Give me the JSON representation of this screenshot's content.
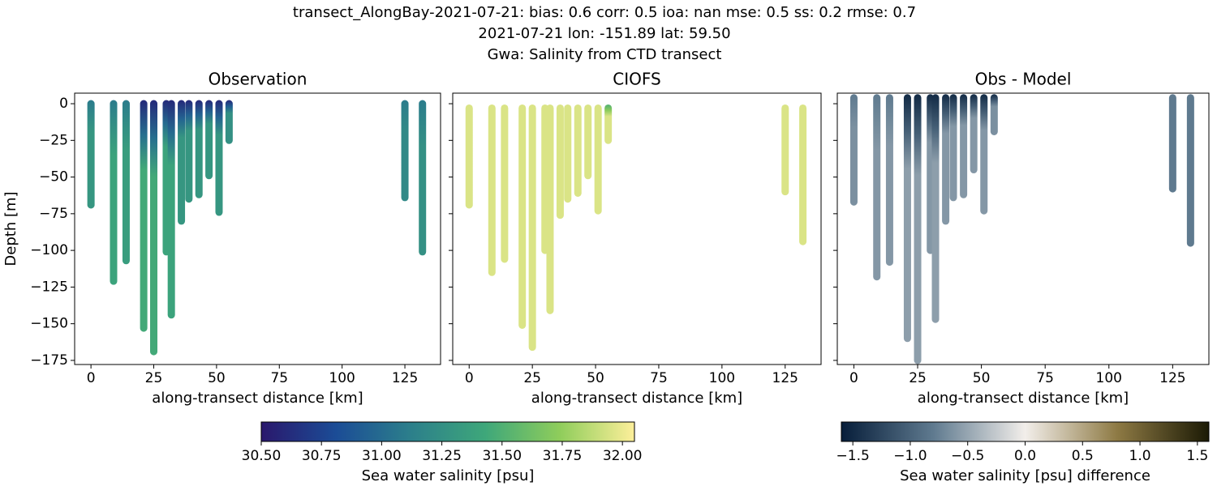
{
  "title": [
    "transect_AlongBay-2021-07-21: bias: 0.6  corr: 0.5  ioa: nan  mse: 0.5  ss: 0.2  rmse: 0.7",
    "2021-07-21 lon: -151.89 lat: 59.50",
    "Gwa: Salinity from CTD transect"
  ],
  "chart_data": [
    {
      "type": "profile",
      "title": "Observation",
      "xlabel": "along-transect distance [km]",
      "ylabel": "Depth [m]",
      "colorbar": 0,
      "xlim": [
        -6.5,
        139.2
      ],
      "ylim": [
        -177.8,
        7.2
      ],
      "xticks": [
        0,
        25,
        50,
        75,
        100,
        125
      ],
      "yticks": [
        {
          "value": 0,
          "label": "0"
        },
        {
          "value": -25,
          "label": "−25"
        },
        {
          "value": -50,
          "label": "−50"
        },
        {
          "value": -75,
          "label": "−75"
        },
        {
          "value": -100,
          "label": "−100"
        },
        {
          "value": -125,
          "label": "−125"
        },
        {
          "value": -150,
          "label": "−150"
        },
        {
          "value": -175,
          "label": "−175"
        }
      ],
      "x": [
        0,
        9,
        14,
        21,
        25,
        30,
        32,
        36,
        39,
        43,
        47,
        51,
        55,
        125,
        132
      ],
      "depth_top": [
        0,
        0,
        0,
        0,
        0,
        0,
        0,
        0,
        0,
        0,
        0,
        0,
        0,
        0,
        0
      ],
      "depth_bottom": [
        -69,
        -121,
        -107,
        -153,
        -169,
        -101,
        -144,
        -80,
        -65,
        -62,
        -49,
        -74,
        -25,
        -64,
        -101
      ],
      "surface_values": [
        31.1,
        31.1,
        31.1,
        30.6,
        30.6,
        30.6,
        30.6,
        30.6,
        30.6,
        30.6,
        30.6,
        30.6,
        30.6,
        31.1,
        31.1
      ],
      "deep_values": [
        31.3,
        31.4,
        31.35,
        31.45,
        31.45,
        31.4,
        31.4,
        31.3,
        31.3,
        31.3,
        31.3,
        31.3,
        31.25,
        31.2,
        31.25
      ]
    },
    {
      "type": "profile",
      "title": "CIOFS",
      "xlabel": "along-transect distance [km]",
      "colorbar": 0,
      "xlim": [
        -6.5,
        139.2
      ],
      "ylim": [
        -177.8,
        7.2
      ],
      "xticks": [
        0,
        25,
        50,
        75,
        100,
        125
      ],
      "x": [
        0,
        9,
        14,
        21,
        25,
        30,
        32,
        36,
        39,
        43,
        47,
        51,
        55,
        125,
        132
      ],
      "depth_top": [
        -3,
        -3,
        -3,
        -3,
        -3,
        -3,
        -3,
        -3,
        -3,
        -3,
        -3,
        -3,
        -3,
        -3,
        -3
      ],
      "depth_bottom": [
        -69,
        -115,
        -106,
        -151,
        -166,
        -100,
        -141,
        -76,
        -65,
        -61,
        -49,
        -73,
        -25,
        -60,
        -94
      ],
      "surface_values": [
        31.95,
        31.95,
        31.95,
        31.95,
        31.95,
        31.95,
        31.95,
        31.95,
        31.95,
        31.95,
        31.95,
        31.95,
        31.5,
        31.95,
        31.95
      ],
      "deep_values": [
        31.95,
        31.95,
        31.95,
        31.95,
        31.95,
        31.95,
        31.95,
        31.95,
        31.95,
        31.95,
        31.95,
        31.95,
        31.95,
        31.95,
        31.95
      ]
    },
    {
      "type": "profile",
      "title": "Obs - Model",
      "xlabel": "along-transect distance [km]",
      "colorbar": 1,
      "xlim": [
        -6.5,
        139.2
      ],
      "ylim": [
        -177.8,
        7.2
      ],
      "xticks": [
        0,
        25,
        50,
        75,
        100,
        125
      ],
      "x": [
        0,
        9,
        14,
        21,
        25,
        30,
        32,
        36,
        39,
        43,
        47,
        51,
        55,
        125,
        132
      ],
      "depth_top": [
        4,
        4,
        4,
        4,
        4,
        4,
        4,
        4,
        4,
        4,
        4,
        4,
        4,
        4,
        4
      ],
      "depth_bottom": [
        -67,
        -118,
        -108,
        -160,
        -175,
        -100,
        -147,
        -80,
        -64,
        -62,
        -45,
        -73,
        -19,
        -58,
        -95
      ],
      "surface_values": [
        -0.8,
        -0.8,
        -0.8,
        -1.5,
        -1.5,
        -1.5,
        -1.5,
        -1.5,
        -1.5,
        -1.5,
        -1.5,
        -1.5,
        -1.5,
        -0.8,
        -0.8
      ],
      "deep_values": [
        -0.65,
        -0.6,
        -0.6,
        -0.55,
        -0.55,
        -0.6,
        -0.55,
        -0.6,
        -0.6,
        -0.6,
        -0.6,
        -0.6,
        -0.65,
        -0.8,
        -0.8
      ]
    }
  ],
  "colorbars": [
    {
      "label": "Sea water salinity [psu]",
      "lim": [
        30.5,
        32.05
      ],
      "colormap": [
        "#2a186c",
        "#1b4c96",
        "#2c7f8b",
        "#3ea77a",
        "#8fcd5b",
        "#fdef9a"
      ],
      "ticks": [
        {
          "value": 30.5,
          "label": "30.50"
        },
        {
          "value": 30.75,
          "label": "30.75"
        },
        {
          "value": 31.0,
          "label": "31.00"
        },
        {
          "value": 31.25,
          "label": "31.25"
        },
        {
          "value": 31.5,
          "label": "31.50"
        },
        {
          "value": 31.75,
          "label": "31.75"
        },
        {
          "value": 32.0,
          "label": "32.00"
        }
      ]
    },
    {
      "label": "Sea water salinity [psu] difference",
      "lim": [
        -1.6,
        1.6
      ],
      "colormap": [
        "#071e3a",
        "#5f7a8f",
        "#f2eeea",
        "#8e7a44",
        "#1b1a05"
      ],
      "ticks": [
        {
          "value": -1.5,
          "label": "−1.5"
        },
        {
          "value": -1.0,
          "label": "−1.0"
        },
        {
          "value": -0.5,
          "label": "−0.5"
        },
        {
          "value": 0.0,
          "label": "0.0"
        },
        {
          "value": 0.5,
          "label": "0.5"
        },
        {
          "value": 1.0,
          "label": "1.0"
        },
        {
          "value": 1.5,
          "label": "1.5"
        }
      ]
    }
  ]
}
